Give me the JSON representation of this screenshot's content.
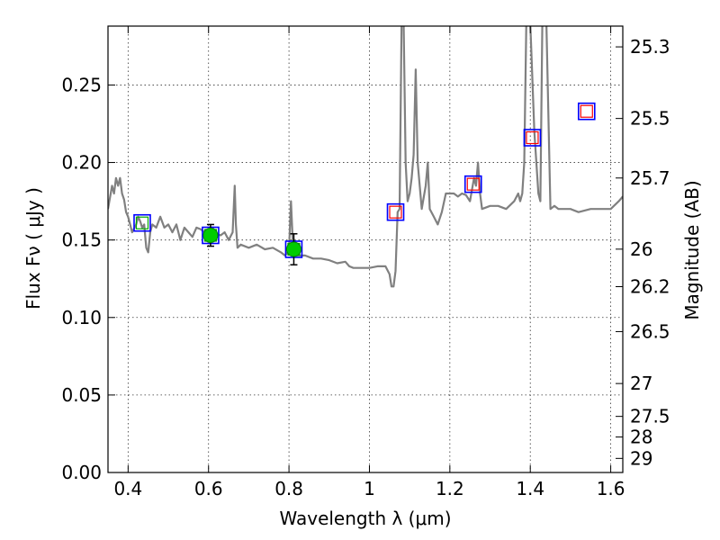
{
  "chart_data": {
    "type": "line",
    "xlabel": "Wavelength  λ (μm)",
    "ylabel": "Flux  Fν  ( μJy )",
    "y2label": "Magnitude (AB)",
    "xlim": [
      0.35,
      1.63
    ],
    "ylim": [
      0.0,
      0.288
    ],
    "grid": true,
    "x_ticks": [
      0.4,
      0.6,
      0.8,
      1.0,
      1.2,
      1.4,
      1.6
    ],
    "x_tick_labels": [
      "0.4",
      "0.6",
      "0.8",
      "1",
      "1.2",
      "1.4",
      "1.6"
    ],
    "y_ticks": [
      0.0,
      0.05,
      0.1,
      0.15,
      0.2,
      0.25
    ],
    "y_tick_labels": [
      "0.00",
      "0.05",
      "0.10",
      "0.15",
      "0.20",
      "0.25"
    ],
    "mag_ticks": [
      {
        "label": "25.3",
        "flux": 0.2746
      },
      {
        "label": "25.5",
        "flux": 0.2284
      },
      {
        "label": "25.7",
        "flux": 0.19
      },
      {
        "label": "26",
        "flux": 0.1441
      },
      {
        "label": "26.2",
        "flux": 0.1199
      },
      {
        "label": "26.5",
        "flux": 0.0909
      },
      {
        "label": "27",
        "flux": 0.0574
      },
      {
        "label": "27.5",
        "flux": 0.0362
      },
      {
        "label": "28",
        "flux": 0.0229
      },
      {
        "label": "29",
        "flux": 0.0091
      }
    ],
    "colors": {
      "sed": "#808080",
      "box_obs": "#0000ff",
      "box_model_blue": "#00aa00",
      "box_model_red": "#ff0000",
      "detection": "#00cc00"
    },
    "series": [
      {
        "name": "model SED",
        "x": [
          0.35,
          0.36,
          0.365,
          0.37,
          0.375,
          0.38,
          0.385,
          0.39,
          0.395,
          0.4,
          0.405,
          0.41,
          0.42,
          0.425,
          0.43,
          0.435,
          0.44,
          0.445,
          0.45,
          0.455,
          0.46,
          0.47,
          0.48,
          0.49,
          0.5,
          0.51,
          0.52,
          0.53,
          0.54,
          0.55,
          0.56,
          0.57,
          0.58,
          0.59,
          0.6,
          0.61,
          0.62,
          0.63,
          0.64,
          0.65,
          0.66,
          0.665,
          0.668,
          0.672,
          0.68,
          0.7,
          0.72,
          0.74,
          0.76,
          0.78,
          0.79,
          0.8,
          0.805,
          0.81,
          0.815,
          0.82,
          0.84,
          0.86,
          0.88,
          0.9,
          0.92,
          0.94,
          0.95,
          0.96,
          0.98,
          1.0,
          1.02,
          1.04,
          1.05,
          1.055,
          1.06,
          1.065,
          1.07,
          1.075,
          1.08,
          1.085,
          1.09,
          1.095,
          1.1,
          1.105,
          1.11,
          1.115,
          1.12,
          1.13,
          1.14,
          1.145,
          1.15,
          1.16,
          1.17,
          1.18,
          1.19,
          1.2,
          1.21,
          1.22,
          1.23,
          1.24,
          1.25,
          1.26,
          1.265,
          1.27,
          1.275,
          1.28,
          1.3,
          1.32,
          1.34,
          1.36,
          1.37,
          1.375,
          1.38,
          1.385,
          1.39,
          1.4,
          1.41,
          1.42,
          1.425,
          1.43,
          1.44,
          1.45,
          1.46,
          1.47,
          1.48,
          1.5,
          1.52,
          1.55,
          1.58,
          1.6,
          1.62,
          1.63
        ],
        "y": [
          0.17,
          0.185,
          0.18,
          0.19,
          0.185,
          0.19,
          0.18,
          0.176,
          0.168,
          0.165,
          0.16,
          0.155,
          0.16,
          0.165,
          0.162,
          0.158,
          0.16,
          0.145,
          0.142,
          0.155,
          0.16,
          0.158,
          0.165,
          0.158,
          0.16,
          0.155,
          0.16,
          0.15,
          0.158,
          0.155,
          0.152,
          0.158,
          0.157,
          0.155,
          0.152,
          0.158,
          0.154,
          0.153,
          0.155,
          0.15,
          0.155,
          0.185,
          0.16,
          0.145,
          0.147,
          0.145,
          0.147,
          0.144,
          0.145,
          0.142,
          0.14,
          0.143,
          0.175,
          0.145,
          0.15,
          0.14,
          0.14,
          0.138,
          0.138,
          0.137,
          0.135,
          0.136,
          0.133,
          0.132,
          0.132,
          0.132,
          0.133,
          0.133,
          0.128,
          0.12,
          0.12,
          0.13,
          0.168,
          0.17,
          0.29,
          0.29,
          0.2,
          0.175,
          0.18,
          0.19,
          0.205,
          0.26,
          0.2,
          0.17,
          0.185,
          0.2,
          0.17,
          0.165,
          0.16,
          0.168,
          0.18,
          0.18,
          0.18,
          0.178,
          0.18,
          0.179,
          0.175,
          0.19,
          0.185,
          0.2,
          0.18,
          0.17,
          0.172,
          0.172,
          0.17,
          0.175,
          0.18,
          0.175,
          0.18,
          0.2,
          0.29,
          0.29,
          0.22,
          0.18,
          0.175,
          0.29,
          0.29,
          0.17,
          0.172,
          0.17,
          0.17,
          0.17,
          0.168,
          0.17,
          0.17,
          0.17,
          0.175,
          0.178
        ]
      }
    ],
    "model_points": [
      {
        "x": 0.435,
        "y": 0.161,
        "color": "green"
      },
      {
        "x": 0.605,
        "y": 0.153,
        "color": "green"
      },
      {
        "x": 0.812,
        "y": 0.144,
        "color": "green"
      },
      {
        "x": 1.065,
        "y": 0.168,
        "color": "red"
      },
      {
        "x": 1.258,
        "y": 0.186,
        "color": "red"
      },
      {
        "x": 1.405,
        "y": 0.216,
        "color": "red"
      },
      {
        "x": 1.54,
        "y": 0.233,
        "color": "red"
      }
    ],
    "detections": [
      {
        "x": 0.605,
        "y": 0.153,
        "err": 0.007
      },
      {
        "x": 0.812,
        "y": 0.144,
        "err": 0.01
      }
    ]
  }
}
